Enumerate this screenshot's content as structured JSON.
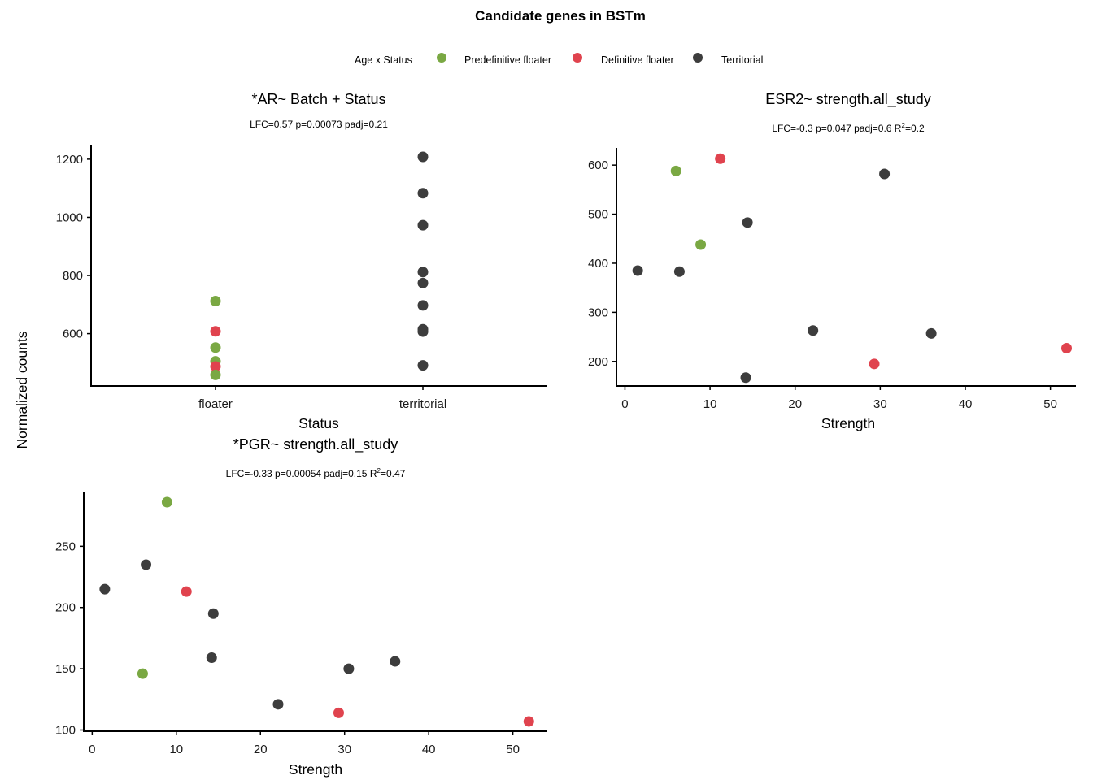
{
  "figure": {
    "title": "Candidate genes in BSTm",
    "ylabel": "Normalized counts",
    "legend": {
      "title": "Age x Status",
      "placement": "top",
      "items": [
        {
          "key": "pre",
          "label": "Predefinitive floater",
          "color": "#7aa843"
        },
        {
          "key": "def",
          "label": "Definitive floater",
          "color": "#e0434e"
        },
        {
          "key": "terr",
          "label": "Territorial",
          "color": "#3d3d3d"
        }
      ]
    }
  },
  "chart_data": [
    {
      "id": "ar",
      "type": "scatter",
      "x_axis": "categorical",
      "title": "*AR~ Batch + Status",
      "subtitle": "LFC=0.57 p=0.00073 padj=0.21",
      "xlabel": "Status",
      "ylabel": "",
      "categories": [
        "floater",
        "territorial"
      ],
      "ylim": [
        420,
        1250
      ],
      "yticks": [
        600,
        800,
        1000,
        1200
      ],
      "grid": false,
      "points": [
        {
          "x": "floater",
          "y": 712,
          "group": "pre"
        },
        {
          "x": "floater",
          "y": 608,
          "group": "def"
        },
        {
          "x": "floater",
          "y": 552,
          "group": "pre"
        },
        {
          "x": "floater",
          "y": 505,
          "group": "pre"
        },
        {
          "x": "floater",
          "y": 487,
          "group": "def"
        },
        {
          "x": "floater",
          "y": 458,
          "group": "pre"
        },
        {
          "x": "territorial",
          "y": 1208,
          "group": "terr"
        },
        {
          "x": "territorial",
          "y": 1083,
          "group": "terr"
        },
        {
          "x": "territorial",
          "y": 973,
          "group": "terr"
        },
        {
          "x": "territorial",
          "y": 812,
          "group": "terr"
        },
        {
          "x": "territorial",
          "y": 774,
          "group": "terr"
        },
        {
          "x": "territorial",
          "y": 697,
          "group": "terr"
        },
        {
          "x": "territorial",
          "y": 615,
          "group": "terr"
        },
        {
          "x": "territorial",
          "y": 607,
          "group": "terr"
        },
        {
          "x": "territorial",
          "y": 491,
          "group": "terr"
        }
      ]
    },
    {
      "id": "esr2",
      "type": "scatter",
      "x_axis": "numeric",
      "title": "ESR2~ strength.all_study",
      "subtitle_prefix": "LFC=-0.3 p=0.047 padj=0.6 R",
      "subtitle_sup": "2",
      "subtitle_suffix": "=0.2",
      "xlabel": "Strength",
      "ylabel": "",
      "xlim": [
        -1,
        53
      ],
      "ylim": [
        150,
        635
      ],
      "xticks": [
        0,
        10,
        20,
        30,
        40,
        50
      ],
      "yticks": [
        200,
        300,
        400,
        500,
        600
      ],
      "grid": false,
      "points": [
        {
          "x": 6.0,
          "y": 588,
          "group": "pre"
        },
        {
          "x": 11.2,
          "y": 613,
          "group": "def"
        },
        {
          "x": 30.5,
          "y": 582,
          "group": "terr"
        },
        {
          "x": 14.4,
          "y": 483,
          "group": "terr"
        },
        {
          "x": 8.9,
          "y": 438,
          "group": "pre"
        },
        {
          "x": 1.5,
          "y": 385,
          "group": "terr"
        },
        {
          "x": 6.4,
          "y": 383,
          "group": "terr"
        },
        {
          "x": 22.1,
          "y": 263,
          "group": "terr"
        },
        {
          "x": 36.0,
          "y": 257,
          "group": "terr"
        },
        {
          "x": 29.3,
          "y": 195,
          "group": "def"
        },
        {
          "x": 51.9,
          "y": 227,
          "group": "def"
        },
        {
          "x": 14.2,
          "y": 167,
          "group": "terr"
        }
      ]
    },
    {
      "id": "pgr",
      "type": "scatter",
      "x_axis": "numeric",
      "title": "*PGR~ strength.all_study",
      "subtitle_prefix": "LFC=-0.33 p=0.00054 padj=0.15 R",
      "subtitle_sup": "2",
      "subtitle_suffix": "=0.47",
      "xlabel": "Strength",
      "ylabel": "",
      "xlim": [
        -1,
        54
      ],
      "ylim": [
        99,
        294
      ],
      "xticks": [
        0,
        10,
        20,
        30,
        40,
        50
      ],
      "yticks": [
        100,
        150,
        200,
        250
      ],
      "grid": false,
      "points": [
        {
          "x": 8.9,
          "y": 286,
          "group": "pre"
        },
        {
          "x": 6.4,
          "y": 235,
          "group": "terr"
        },
        {
          "x": 1.5,
          "y": 215,
          "group": "terr"
        },
        {
          "x": 11.2,
          "y": 213,
          "group": "def"
        },
        {
          "x": 14.4,
          "y": 195,
          "group": "terr"
        },
        {
          "x": 14.2,
          "y": 159,
          "group": "terr"
        },
        {
          "x": 6.0,
          "y": 146,
          "group": "pre"
        },
        {
          "x": 30.5,
          "y": 150,
          "group": "terr"
        },
        {
          "x": 36.0,
          "y": 156,
          "group": "terr"
        },
        {
          "x": 22.1,
          "y": 121,
          "group": "terr"
        },
        {
          "x": 29.3,
          "y": 114,
          "group": "def"
        },
        {
          "x": 51.9,
          "y": 107,
          "group": "def"
        }
      ]
    }
  ]
}
